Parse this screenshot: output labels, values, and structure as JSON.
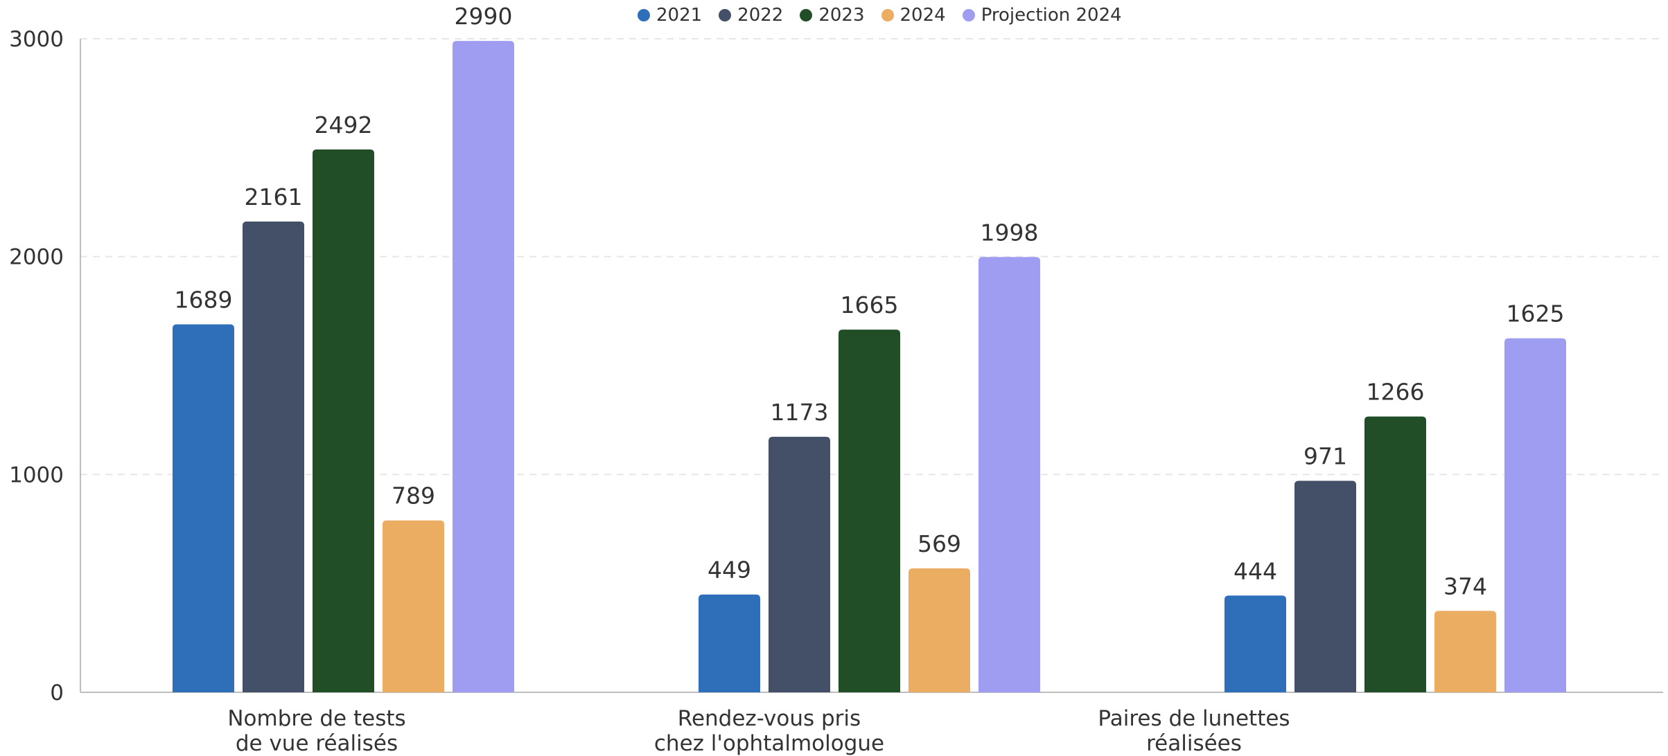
{
  "chart_data": {
    "type": "bar",
    "categories": [
      [
        "Nombre de tests",
        "de vue réalisés"
      ],
      [
        "Rendez-vous pris",
        "chez l'ophtalmologue"
      ],
      [
        "Paires de lunettes",
        "réalisées"
      ]
    ],
    "series": [
      {
        "name": "2021",
        "color": "#2F6FBA",
        "values": [
          1689,
          449,
          444
        ]
      },
      {
        "name": "2022",
        "color": "#435067",
        "values": [
          2161,
          1173,
          971
        ]
      },
      {
        "name": "2023",
        "color": "#214D27",
        "values": [
          2492,
          1665,
          1266
        ]
      },
      {
        "name": "2024",
        "color": "#EBAD61",
        "values": [
          789,
          569,
          374
        ]
      },
      {
        "name": "Projection 2024",
        "color": "#9F9DF2",
        "values": [
          2990,
          1998,
          1625
        ]
      }
    ],
    "yticks": [
      "0",
      "1000",
      "2000",
      "3000"
    ],
    "ylim": [
      0,
      3000
    ],
    "grid": true,
    "legend_position": "top-center"
  }
}
